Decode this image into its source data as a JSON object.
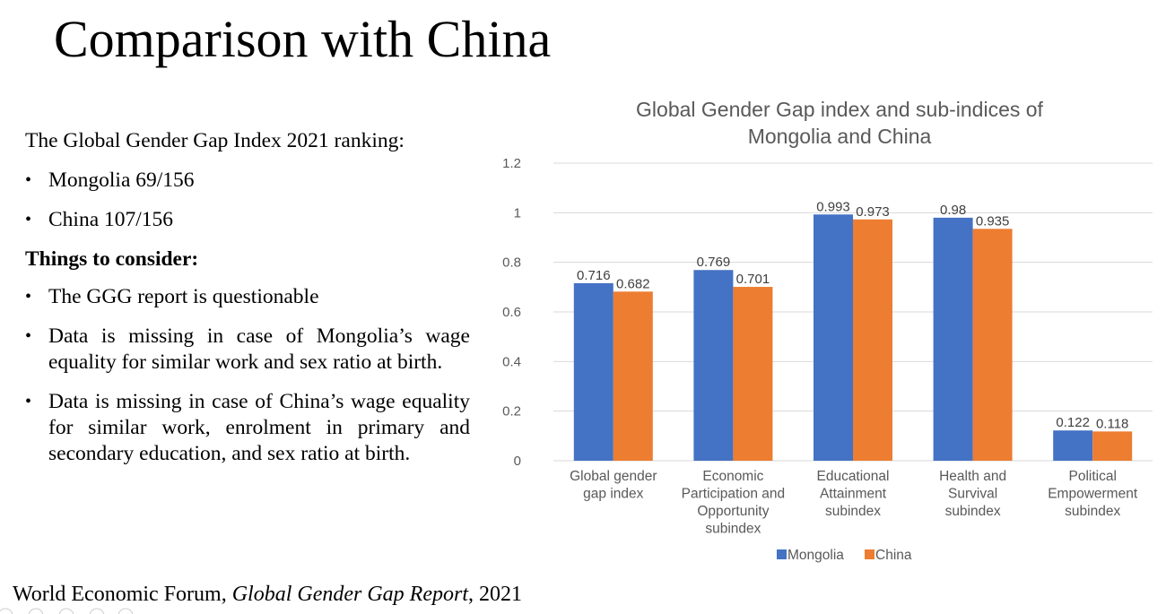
{
  "slide": {
    "title": "Comparison with China",
    "intro": "The Global Gender Gap Index 2021 ranking:",
    "rankings": [
      "Mongolia 69/156",
      "China 107/156"
    ],
    "subheading": "Things to consider:",
    "considerations": [
      "The GGG report is questionable",
      "Data is missing in case of Mongolia’s wage equality for similar work and sex ratio at birth.",
      "Data is missing in case of China’s wage equality for similar work, enrolment in primary and secondary education, and sex ratio at birth."
    ],
    "source_prefix": "World Economic Forum, ",
    "source_italic": "Global Gender Gap Report",
    "source_suffix": ", 2021"
  },
  "chart_data": {
    "type": "bar",
    "title_lines": [
      "Global Gender Gap index and sub-indices of",
      "Mongolia and China"
    ],
    "categories": [
      [
        "Global gender",
        "gap index"
      ],
      [
        "Economic",
        "Participation and",
        "Opportunity",
        "subindex"
      ],
      [
        "Educational",
        "Attainment",
        "subindex"
      ],
      [
        "Health and",
        "Survival",
        "subindex"
      ],
      [
        "Political",
        "Empowerment",
        "subindex"
      ]
    ],
    "series": [
      {
        "name": "Mongolia",
        "color": "#4472c4",
        "values": [
          0.716,
          0.769,
          0.993,
          0.98,
          0.122
        ]
      },
      {
        "name": "China",
        "color": "#ed7d31",
        "values": [
          0.682,
          0.701,
          0.973,
          0.935,
          0.118
        ]
      }
    ],
    "ylim": [
      0,
      1.2
    ],
    "yticks": [
      "0",
      "0.2",
      "0.4",
      "0.6",
      "0.8",
      "1",
      "1.2"
    ],
    "grid": true,
    "legend": "bottom"
  }
}
